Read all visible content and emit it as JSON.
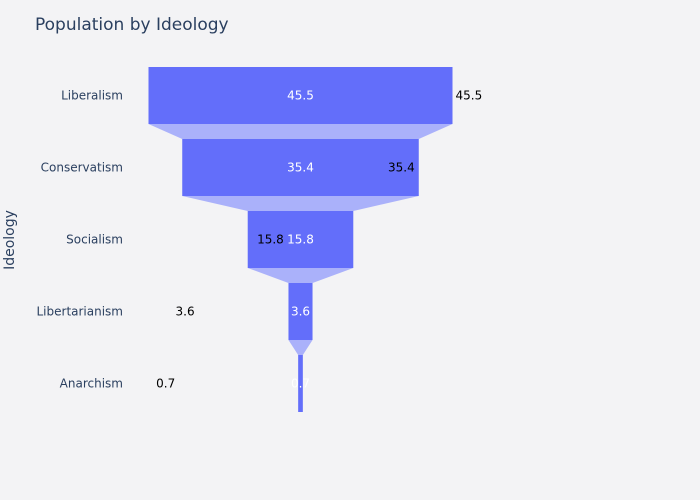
{
  "chart_data": {
    "type": "funnel",
    "title": "Population by Ideology",
    "ylabel": "Ideology",
    "categories": [
      "Liberalism",
      "Conservatism",
      "Socialism",
      "Libertarianism",
      "Anarchism"
    ],
    "values": [
      45.5,
      35.4,
      15.8,
      3.6,
      0.7
    ],
    "value_labels": [
      "45.5",
      "35.4",
      "15.8",
      "3.6",
      "0.7"
    ],
    "bar_color": "#636efa",
    "connector_color": "#aab1fa",
    "background_color": "#f3f3f5"
  }
}
